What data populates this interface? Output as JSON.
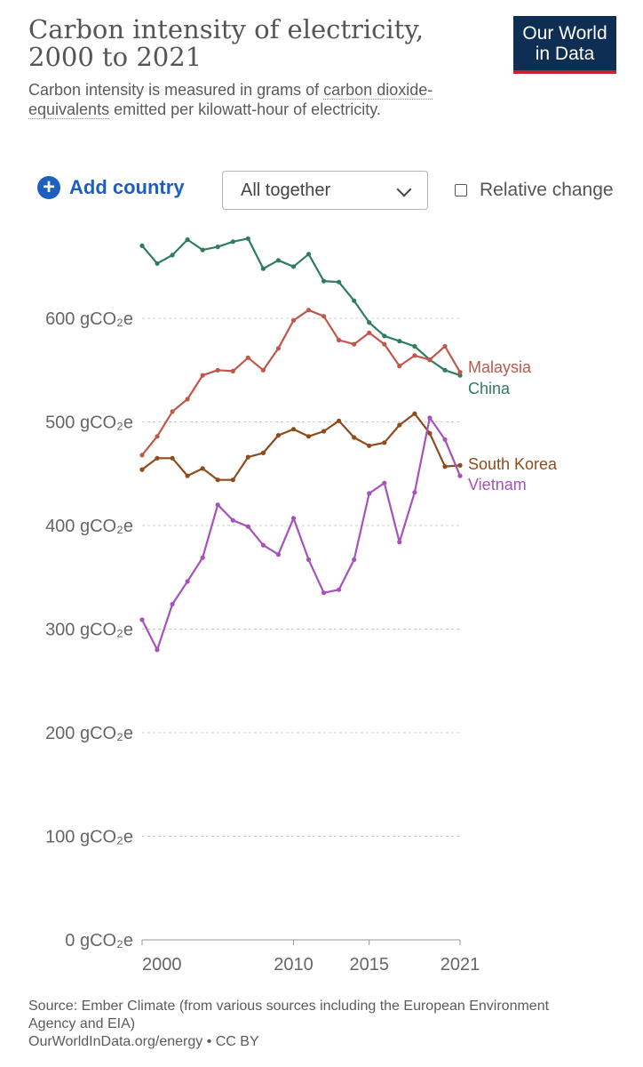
{
  "header": {
    "title": "Carbon intensity of electricity, 2000 to 2021",
    "subtitle_pre": "Carbon intensity is measured in grams of ",
    "subtitle_link": "carbon dioxide-equivalents",
    "subtitle_post": " emitted per kilowatt-hour of electricity.",
    "logo_line1": "Our World",
    "logo_line2": "in Data"
  },
  "controls": {
    "add_country": "Add country",
    "select_value": "All together",
    "relative_change": "Relative change"
  },
  "footer": {
    "source": "Source: Ember Climate (from various sources including the European Environment Agency and EIA)",
    "license": "OurWorldInData.org/energy • CC BY"
  },
  "chart_data": {
    "type": "line",
    "title": "Carbon intensity of electricity, 2000 to 2021",
    "ylabel": "",
    "ylim": [
      0,
      700
    ],
    "xlim": [
      2000,
      2021
    ],
    "y_ticks": [
      {
        "value": 0,
        "label": "0 gCO₂e"
      },
      {
        "value": 100,
        "label": "100 gCO₂e"
      },
      {
        "value": 200,
        "label": "200 gCO₂e"
      },
      {
        "value": 300,
        "label": "300 gCO₂e"
      },
      {
        "value": 400,
        "label": "400 gCO₂e"
      },
      {
        "value": 500,
        "label": "500 gCO₂e"
      },
      {
        "value": 600,
        "label": "600 gCO₂e"
      }
    ],
    "x_ticks": [
      2000,
      2010,
      2015,
      2021
    ],
    "grid": "horizontal dashed",
    "legend": "inline labels at right end",
    "x": [
      2000,
      2001,
      2002,
      2003,
      2004,
      2005,
      2006,
      2007,
      2008,
      2009,
      2010,
      2011,
      2012,
      2013,
      2014,
      2015,
      2016,
      2017,
      2018,
      2019,
      2020,
      2021
    ],
    "series": [
      {
        "name": "China",
        "color": "#2e7d5b",
        "values": [
          670,
          653,
          661,
          676,
          666,
          669,
          674,
          677,
          648,
          656,
          650,
          662,
          636,
          635,
          617,
          596,
          583,
          578,
          573,
          560,
          550,
          545
        ]
      },
      {
        "name": "Malaysia",
        "color": "#c0584a",
        "values": [
          468,
          486,
          510,
          522,
          545,
          550,
          549,
          562,
          550,
          571,
          598,
          608,
          602,
          579,
          575,
          586,
          575,
          554,
          564,
          560,
          573,
          548
        ]
      },
      {
        "name": "South Korea",
        "color": "#8e4b1c",
        "values": [
          454,
          465,
          465,
          448,
          455,
          444,
          444,
          466,
          470,
          487,
          493,
          486,
          491,
          501,
          485,
          477,
          480,
          497,
          508,
          489,
          457,
          458
        ]
      },
      {
        "name": "Vietnam",
        "color": "#a652ba",
        "values": [
          309,
          280,
          324,
          346,
          369,
          420,
          405,
          399,
          381,
          372,
          407,
          367,
          335,
          338,
          367,
          431,
          441,
          384,
          432,
          504,
          483,
          448
        ]
      }
    ]
  }
}
